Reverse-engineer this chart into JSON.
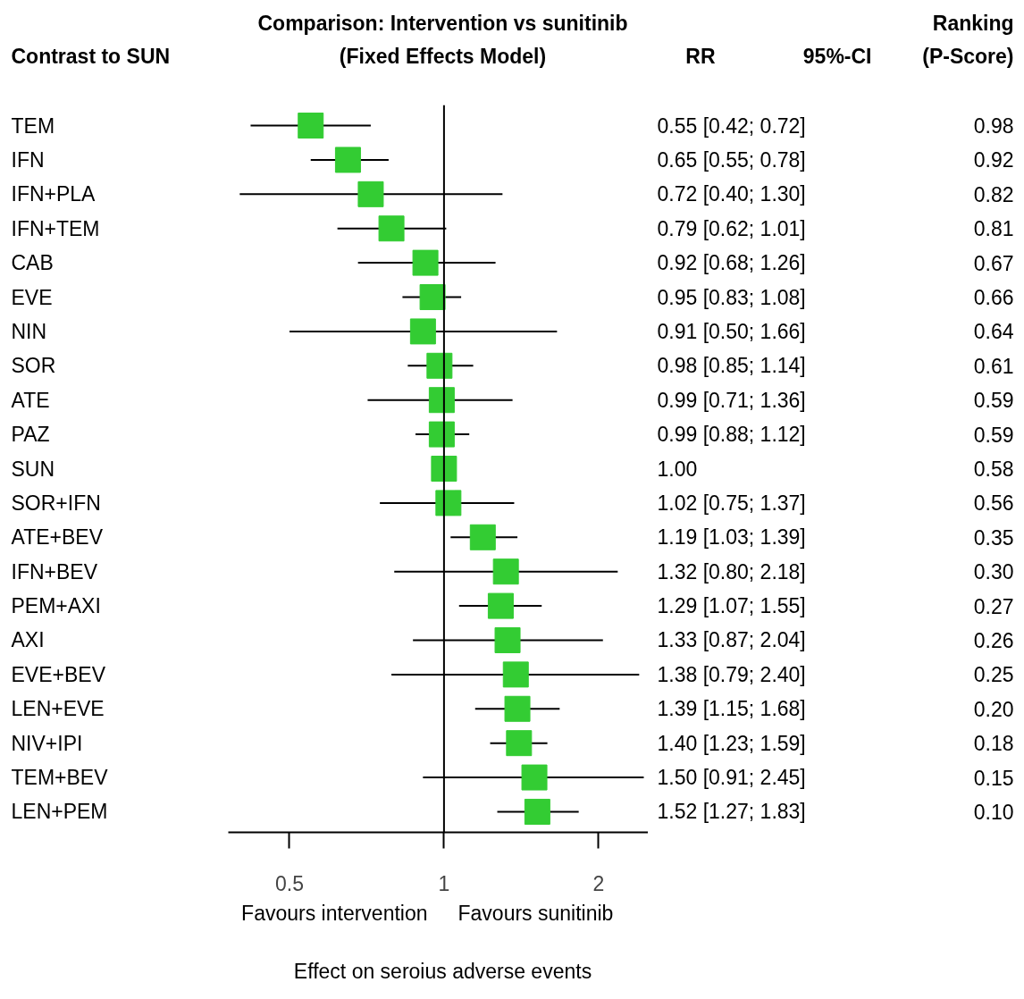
{
  "chart_data": {
    "type": "scatter",
    "orientation": "horizontal",
    "title": "Comparison: Intervention vs sunitinib",
    "subtitle": "(Fixed Effects Model)",
    "xlabel": "Effect on seroius adverse events",
    "categories": [
      "TEM",
      "IFN",
      "IFN+PLA",
      "IFN+TEM",
      "CAB",
      "EVE",
      "NIN",
      "SOR",
      "ATE",
      "PAZ",
      "SUN",
      "SOR+IFN",
      "ATE+BEV",
      "IFN+BEV",
      "PEM+AXI",
      "AXI",
      "EVE+BEV",
      "LEN+EVE",
      "NIV+IPI",
      "TEM+BEV",
      "LEN+PEM"
    ],
    "series": [
      {
        "color": "#33cc33",
        "values": [
          0.55,
          0.65,
          0.72,
          0.79,
          0.92,
          0.95,
          0.91,
          0.98,
          0.99,
          0.99,
          1.0,
          1.02,
          1.19,
          1.32,
          1.29,
          1.33,
          1.38,
          1.39,
          1.4,
          1.5,
          1.52
        ],
        "errors": [
          [
            0.42,
            0.72
          ],
          [
            0.55,
            0.78
          ],
          [
            0.4,
            1.3
          ],
          [
            0.62,
            1.01
          ],
          [
            0.68,
            1.26
          ],
          [
            0.83,
            1.08
          ],
          [
            0.5,
            1.66
          ],
          [
            0.85,
            1.14
          ],
          [
            0.71,
            1.36
          ],
          [
            0.88,
            1.12
          ],
          null,
          [
            0.75,
            1.37
          ],
          [
            1.03,
            1.39
          ],
          [
            0.8,
            2.18
          ],
          [
            1.07,
            1.55
          ],
          [
            0.87,
            2.04
          ],
          [
            0.79,
            2.4
          ],
          [
            1.15,
            1.68
          ],
          [
            1.23,
            1.59
          ],
          [
            0.91,
            2.45
          ],
          [
            1.27,
            1.83
          ]
        ]
      }
    ],
    "marker": "square",
    "log": "x",
    "xlim": [
      0.38,
      2.5
    ],
    "xticks": [
      0.5,
      1,
      2
    ],
    "grid": false,
    "ref_lines": [
      {
        "axis": "x",
        "value": 1
      }
    ],
    "annotations": [
      "Contrast to SUN",
      "RR",
      "95%-CI",
      "Ranking",
      "(P-Score)",
      "Favours intervention",
      "Favours sunitinib",
      "0.55 [0.42; 0.72]",
      "0.65 [0.55; 0.78]",
      "0.72 [0.40; 1.30]",
      "0.79 [0.62; 1.01]",
      "0.92 [0.68; 1.26]",
      "0.95 [0.83; 1.08]",
      "0.91 [0.50; 1.66]",
      "0.98 [0.85; 1.14]",
      "0.99 [0.71; 1.36]",
      "0.99 [0.88; 1.12]",
      "1.00",
      "1.02 [0.75; 1.37]",
      "1.19 [1.03; 1.39]",
      "1.32 [0.80; 2.18]",
      "1.29 [1.07; 1.55]",
      "1.33 [0.87; 2.04]",
      "1.38 [0.79; 2.40]",
      "1.39 [1.15; 1.68]",
      "1.40 [1.23; 1.59]",
      "1.50 [0.91; 2.45]",
      "1.52 [1.27; 1.83]",
      "0.98",
      "0.92",
      "0.82",
      "0.81",
      "0.67",
      "0.66",
      "0.64",
      "0.61",
      "0.59",
      "0.59",
      "0.58",
      "0.56",
      "0.35",
      "0.30",
      "0.27",
      "0.26",
      "0.25",
      "0.20",
      "0.18",
      "0.15",
      "0.10"
    ]
  }
}
